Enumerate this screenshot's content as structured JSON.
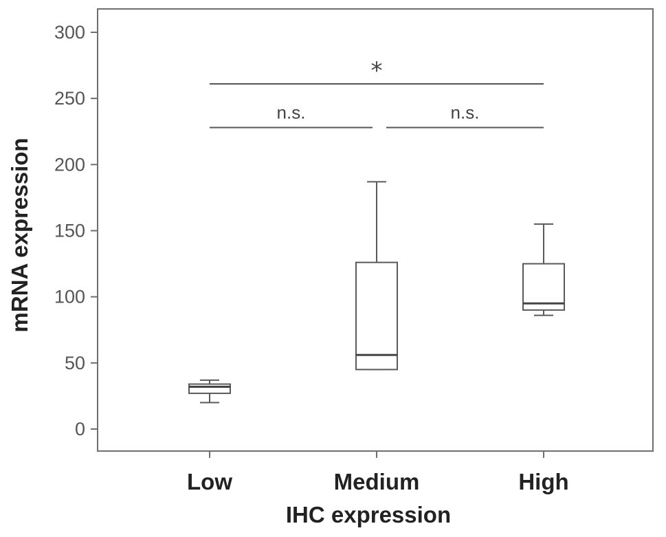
{
  "chart_data": {
    "type": "box",
    "xlabel": "IHC expression",
    "ylabel": "mRNA expression",
    "ylim": [
      -15,
      318
    ],
    "yticks": [
      0,
      50,
      100,
      150,
      200,
      250,
      300
    ],
    "categories": [
      "Low",
      "Medium",
      "High"
    ],
    "boxes": [
      {
        "category": "Low",
        "whisker_low": 20,
        "q1": 27,
        "median": 32,
        "q3": 34,
        "whisker_high": 37
      },
      {
        "category": "Medium",
        "whisker_low": 45,
        "q1": 45,
        "median": 56,
        "q3": 126,
        "whisker_high": 187
      },
      {
        "category": "High",
        "whisker_low": 86,
        "q1": 90,
        "median": 95,
        "q3": 125,
        "whisker_high": 155
      }
    ],
    "significance": [
      {
        "from": "Low",
        "to": "Medium",
        "y": 228,
        "label": "n.s."
      },
      {
        "from": "Medium",
        "to": "High",
        "y": 228,
        "label": "n.s."
      },
      {
        "from": "Low",
        "to": "High",
        "y": 261,
        "label": "*"
      }
    ],
    "grid": false,
    "legend": "none"
  }
}
